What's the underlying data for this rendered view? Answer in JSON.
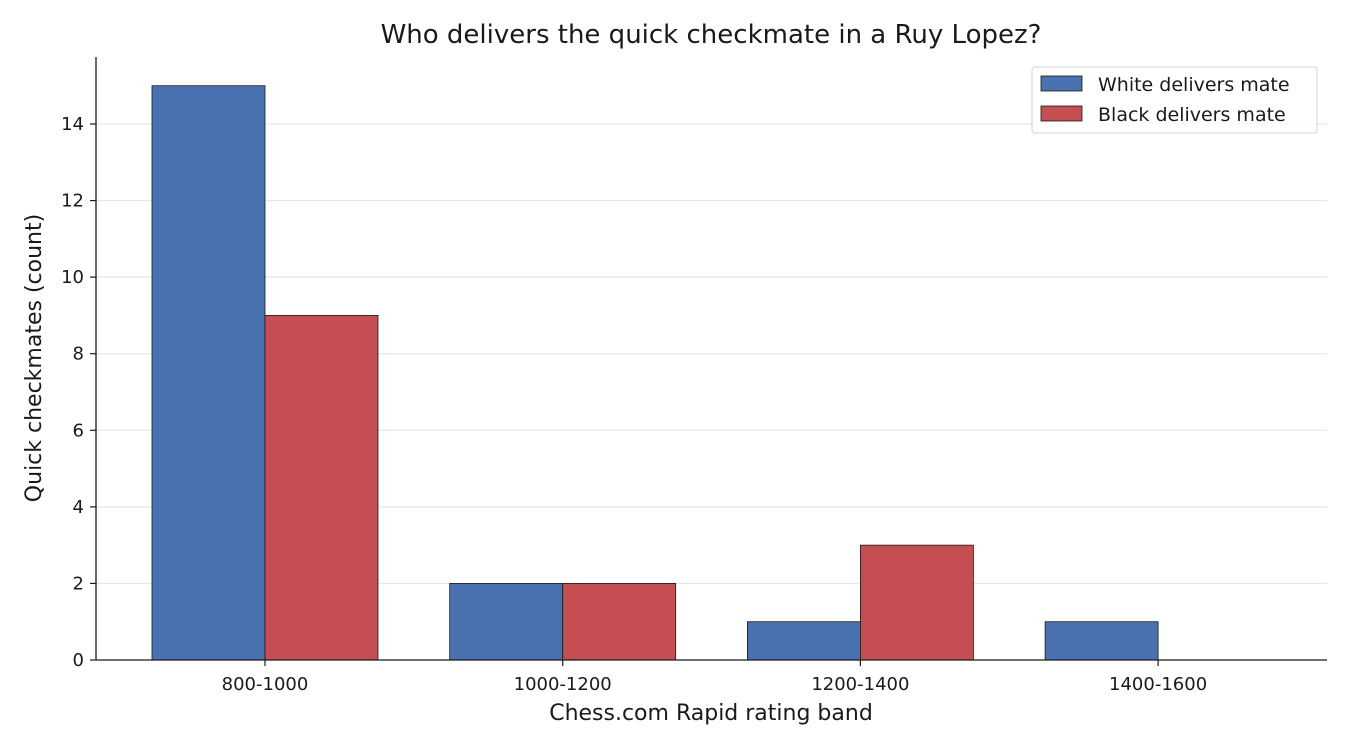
{
  "chart_data": {
    "type": "bar",
    "title": "Who delivers the quick checkmate in a Ruy Lopez?",
    "xlabel": "Chess.com Rapid rating band",
    "ylabel": "Quick checkmates (count)",
    "categories": [
      "800-1000",
      "1000-1200",
      "1200-1400",
      "1400-1600"
    ],
    "series": [
      {
        "name": "White delivers mate",
        "color": "#4a72b0",
        "values": [
          15,
          2,
          1,
          1
        ]
      },
      {
        "name": "Black delivers mate",
        "color": "#c44e52",
        "values": [
          9,
          2,
          3,
          0
        ]
      }
    ],
    "ylim": [
      0,
      15.75
    ],
    "yticks": [
      0,
      2,
      4,
      6,
      8,
      10,
      12,
      14
    ],
    "grid": "horizontal",
    "legend_position": "top-right"
  }
}
